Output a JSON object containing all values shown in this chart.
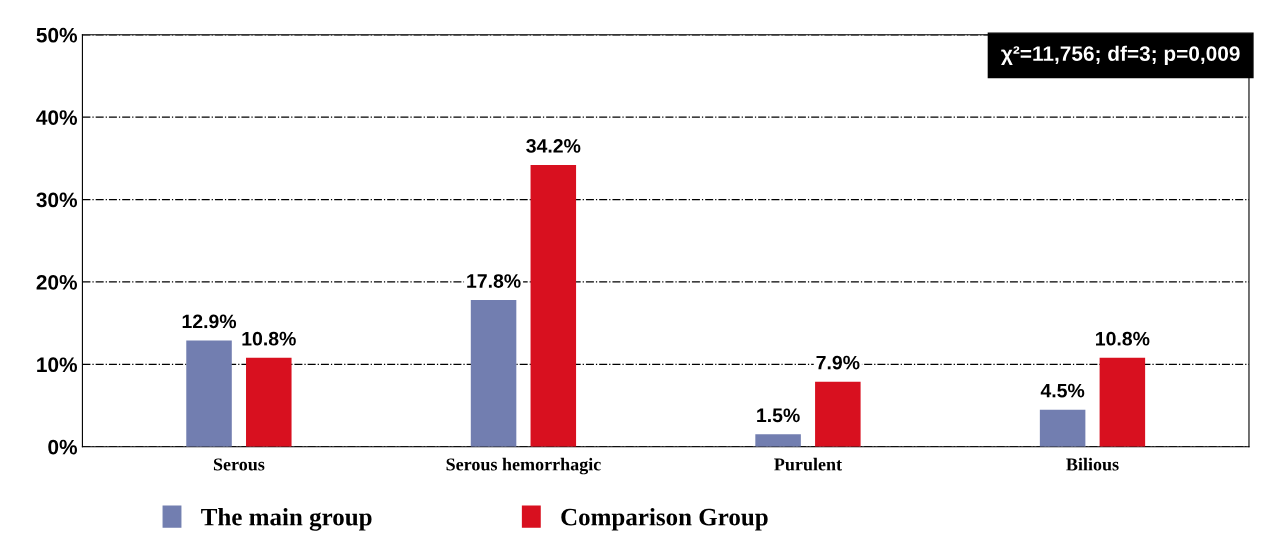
{
  "chart_data": {
    "type": "bar",
    "categories": [
      "Serous",
      "Serous hemorrhagic",
      "Purulent",
      "Bilious"
    ],
    "series": [
      {
        "name": "The main group",
        "color": "#727eb0",
        "values": [
          12.9,
          17.8,
          1.5,
          4.5
        ],
        "value_labels": [
          "12.9%",
          "17.8%",
          "1.5%",
          "4.5%"
        ]
      },
      {
        "name": "Comparison Group",
        "color": "#d8101f",
        "values": [
          10.8,
          34.2,
          7.9,
          10.8
        ],
        "value_labels": [
          "10.8%",
          "34.2%",
          "7.9%",
          "10.8%"
        ]
      }
    ],
    "ylim": [
      0,
      50
    ],
    "yticks": [
      {
        "value": 0,
        "label": "0%"
      },
      {
        "value": 10,
        "label": "10%"
      },
      {
        "value": 20,
        "label": "20%"
      },
      {
        "value": 30,
        "label": "30%"
      },
      {
        "value": 40,
        "label": "40%"
      },
      {
        "value": 50,
        "label": "50%"
      }
    ],
    "grid": "y",
    "line_style": "dashdot",
    "legend": "bottom",
    "annotations": [
      "χ²=11,756; df=3; p=0,009"
    ]
  }
}
